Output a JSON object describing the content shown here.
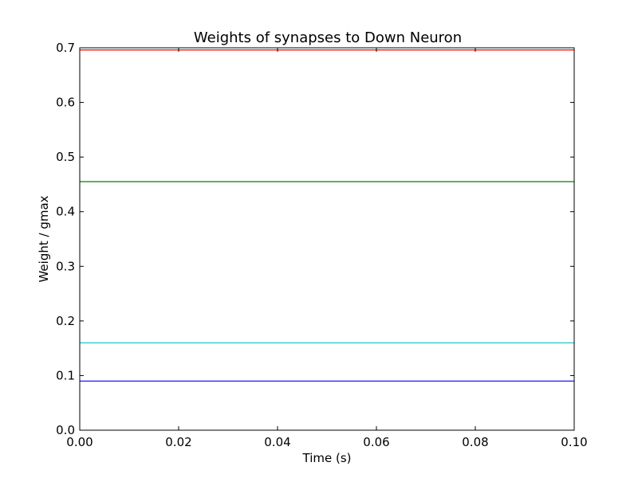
{
  "chart_data": {
    "type": "line",
    "title": "Weights of synapses to Down Neuron",
    "xlabel": "Time (s)",
    "ylabel": "Weight / gmax",
    "xlim": [
      0.0,
      0.1
    ],
    "ylim": [
      0.0,
      0.7
    ],
    "xticks": [
      "0.00",
      "0.02",
      "0.04",
      "0.06",
      "0.08",
      "0.10"
    ],
    "yticks": [
      "0.0",
      "0.1",
      "0.2",
      "0.3",
      "0.4",
      "0.5",
      "0.6",
      "0.7"
    ],
    "grid": false,
    "x": [
      0.0,
      0.1
    ],
    "series": [
      {
        "values": [
          0.696,
          0.696
        ],
        "color": "#ff0000"
      },
      {
        "values": [
          0.455,
          0.455
        ],
        "color": "#008000"
      },
      {
        "values": [
          0.16,
          0.16
        ],
        "color": "#00bfbf"
      },
      {
        "values": [
          0.09,
          0.09
        ],
        "color": "#0000ff"
      }
    ]
  }
}
